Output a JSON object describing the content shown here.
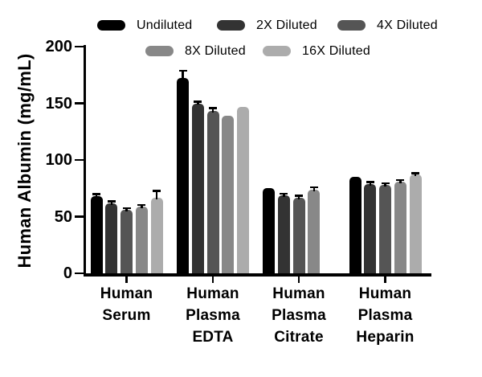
{
  "chart_data": {
    "type": "bar",
    "title": "",
    "ylabel": "Human Albumin (mg/mL)",
    "xlabel": "",
    "ylim": [
      0,
      200
    ],
    "yticks": [
      0,
      50,
      100,
      150,
      200
    ],
    "grid": false,
    "error_bars": true,
    "legend_position": "top",
    "categories": [
      {
        "label": "Human Serum",
        "lines": [
          "Human",
          "Serum"
        ]
      },
      {
        "label": "Human Plasma EDTA",
        "lines": [
          "Human",
          "Plasma",
          "EDTA"
        ]
      },
      {
        "label": "Human Plasma Citrate",
        "lines": [
          "Human",
          "Plasma",
          "Citrate"
        ]
      },
      {
        "label": "Human Plasma Heparin",
        "lines": [
          "Human",
          "Plasma",
          "Heparin"
        ]
      }
    ],
    "series": [
      {
        "name": "Undiluted",
        "color": "#000000",
        "values": [
          68,
          172,
          75,
          85
        ],
        "errors": [
          2,
          7,
          0,
          0
        ]
      },
      {
        "name": "2X Diluted",
        "color": "#333333",
        "values": [
          62,
          150,
          69,
          79
        ],
        "errors": [
          1.5,
          1.5,
          1.5,
          1.5
        ]
      },
      {
        "name": "4X Diluted",
        "color": "#555555",
        "values": [
          56,
          143,
          67,
          78
        ],
        "errors": [
          1.5,
          3,
          1.5,
          1.5
        ]
      },
      {
        "name": "8X Diluted",
        "color": "#888888",
        "values": [
          59,
          139,
          74,
          81
        ],
        "errors": [
          1.5,
          0,
          2,
          1.5
        ]
      },
      {
        "name": "16X Diluted",
        "color": "#acacac",
        "values": [
          67,
          147,
          null,
          87
        ],
        "errors": [
          6,
          0,
          null,
          1.5
        ]
      }
    ],
    "colors": {
      "axis": "#000000",
      "background": "#ffffff",
      "text": "#000000"
    }
  }
}
